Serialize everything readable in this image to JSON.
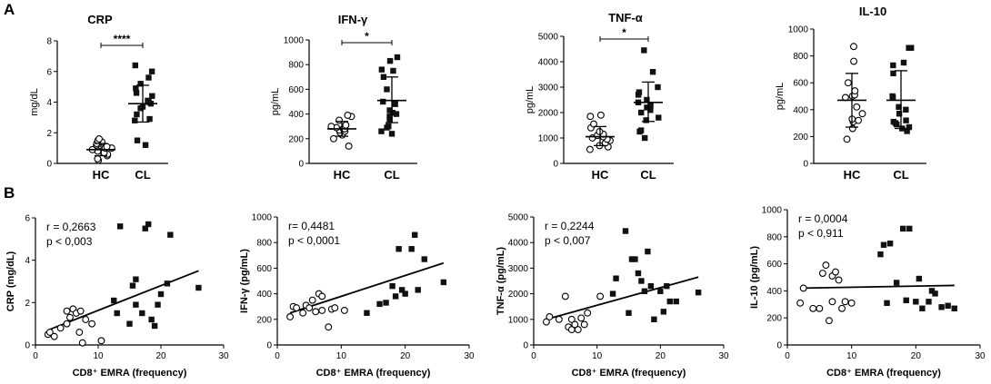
{
  "figure": {
    "panel_a_letter": "A",
    "panel_b_letter": "B"
  },
  "chart_data": [
    {
      "id": "a1",
      "type": "scatter",
      "subtype": "dot-plot",
      "title": "CRP",
      "ylabel": "mg/dL",
      "ylim": [
        0,
        8
      ],
      "yticks": [
        0,
        2,
        4,
        6,
        8
      ],
      "categories": [
        "HC",
        "CL"
      ],
      "groups": [
        {
          "name": "HC",
          "marker": "open-circle",
          "values": [
            0.2,
            0.3,
            0.5,
            0.6,
            0.7,
            0.8,
            0.9,
            1.0,
            1.0,
            1.1,
            1.2,
            1.3,
            1.4,
            1.5,
            1.6
          ],
          "mean": 0.9,
          "sd_low": 0.5,
          "sd_high": 1.3
        },
        {
          "name": "CL",
          "marker": "filled-square",
          "values": [
            1.2,
            1.5,
            2.8,
            2.9,
            3.2,
            3.6,
            3.7,
            3.9,
            4.0,
            4.1,
            4.4,
            4.6,
            4.9,
            5.2,
            5.6,
            6.0,
            6.4
          ],
          "mean": 3.9,
          "sd_low": 2.7,
          "sd_high": 5.1
        }
      ],
      "significance": "****"
    },
    {
      "id": "a2",
      "type": "scatter",
      "subtype": "dot-plot",
      "title": "IFN-γ",
      "ylabel": "pg/mL",
      "ylim": [
        0,
        1000
      ],
      "yticks": [
        0,
        200,
        400,
        600,
        800,
        1000
      ],
      "categories": [
        "HC",
        "CL"
      ],
      "groups": [
        {
          "name": "HC",
          "marker": "open-circle",
          "values": [
            140,
            200,
            230,
            250,
            260,
            270,
            280,
            280,
            290,
            300,
            310,
            350,
            380,
            390
          ],
          "mean": 280,
          "sd_low": 220,
          "sd_high": 340
        },
        {
          "name": "CL",
          "marker": "filled-square",
          "values": [
            240,
            260,
            290,
            300,
            350,
            380,
            400,
            410,
            430,
            480,
            500,
            600,
            700,
            750,
            760,
            830,
            860
          ],
          "mean": 510,
          "sd_low": 330,
          "sd_high": 700
        },
        {
          "name": "",
          "marker": "",
          "values": []
        }
      ],
      "significance": "*"
    },
    {
      "id": "a3",
      "type": "scatter",
      "subtype": "dot-plot",
      "title": "TNF-α",
      "ylabel": "pg/mL",
      "ylim": [
        0,
        5000
      ],
      "yticks": [
        0,
        1000,
        2000,
        3000,
        4000,
        5000
      ],
      "categories": [
        "HC",
        "CL"
      ],
      "groups": [
        {
          "name": "HC",
          "marker": "open-circle",
          "values": [
            550,
            650,
            700,
            800,
            900,
            950,
            1000,
            1050,
            1100,
            1150,
            1250,
            1400,
            1550,
            1850,
            1900
          ],
          "mean": 1050,
          "sd_low": 700,
          "sd_high": 1450
        },
        {
          "name": "CL",
          "marker": "filled-square",
          "values": [
            1000,
            1250,
            1300,
            1700,
            1800,
            2000,
            2100,
            2200,
            2300,
            2400,
            2500,
            2700,
            2800,
            3000,
            3600,
            4450
          ],
          "mean": 2400,
          "sd_low": 1650,
          "sd_high": 3200
        }
      ],
      "significance": "*"
    },
    {
      "id": "a4",
      "type": "scatter",
      "subtype": "dot-plot",
      "title": "IL-10",
      "ylabel": "pg/mL",
      "ylim": [
        0,
        1000
      ],
      "yticks": [
        0,
        200,
        400,
        600,
        800,
        1000
      ],
      "categories": [
        "HC",
        "CL"
      ],
      "groups": [
        {
          "name": "HC",
          "marker": "open-circle",
          "values": [
            180,
            260,
            310,
            320,
            330,
            370,
            420,
            490,
            500,
            510,
            540,
            600,
            760,
            870
          ],
          "mean": 470,
          "sd_low": 270,
          "sd_high": 670
        },
        {
          "name": "CL",
          "marker": "filled-square",
          "values": [
            240,
            260,
            270,
            290,
            300,
            310,
            320,
            370,
            400,
            420,
            490,
            500,
            670,
            730,
            750,
            860,
            860
          ],
          "mean": 470,
          "sd_low": 260,
          "sd_high": 690
        }
      ],
      "significance": ""
    },
    {
      "id": "b1",
      "type": "scatter",
      "xlabel": "CD8⁺ EMRA (frequency)",
      "ylabel": "CRP (mg/dL)",
      "xlim": [
        0,
        30
      ],
      "ylim": [
        0,
        6
      ],
      "xticks": [
        0,
        10,
        20,
        30
      ],
      "yticks": [
        0,
        2,
        4,
        6
      ],
      "stat_r": "r = 0,2663",
      "stat_p": "p < 0,003",
      "fit": [
        [
          2,
          0.7
        ],
        [
          26,
          3.5
        ]
      ],
      "open_points": [
        [
          2,
          0.5
        ],
        [
          2.3,
          0.6
        ],
        [
          3,
          0.4
        ],
        [
          4,
          0.8
        ],
        [
          5,
          1.0
        ],
        [
          5,
          1.6
        ],
        [
          5.5,
          1.3
        ],
        [
          6,
          1.7
        ],
        [
          6.5,
          1.5
        ],
        [
          7,
          0.6
        ],
        [
          7.2,
          1.6
        ],
        [
          7.5,
          0.1
        ],
        [
          8,
          1.2
        ],
        [
          9,
          1.0
        ],
        [
          10.5,
          0.2
        ]
      ],
      "filled_points": [
        [
          12.5,
          2.1
        ],
        [
          13,
          1.5
        ],
        [
          13.5,
          5.6
        ],
        [
          15,
          1.0
        ],
        [
          15.5,
          2.8
        ],
        [
          16,
          3.1
        ],
        [
          16,
          1.9
        ],
        [
          17,
          1.5
        ],
        [
          17.5,
          5.5
        ],
        [
          18,
          5.7
        ],
        [
          18.5,
          1.2
        ],
        [
          19,
          0.9
        ],
        [
          19.5,
          1.9
        ],
        [
          20,
          2.4
        ],
        [
          21,
          2.9
        ],
        [
          21.5,
          5.2
        ],
        [
          26,
          2.7
        ]
      ]
    },
    {
      "id": "b2",
      "type": "scatter",
      "xlabel": "CD8⁺ EMRA (frequency)",
      "ylabel": "IFN-γ (pg/mL)",
      "xlim": [
        0,
        30
      ],
      "ylim": [
        0,
        1000
      ],
      "xticks": [
        0,
        10,
        20,
        30
      ],
      "yticks": [
        0,
        200,
        400,
        600,
        800,
        1000
      ],
      "stat_r": "r= 0,4481",
      "stat_p": "p < 0,0001",
      "fit": [
        [
          2,
          250
        ],
        [
          26,
          640
        ]
      ],
      "open_points": [
        [
          2,
          220
        ],
        [
          2.5,
          300
        ],
        [
          3,
          290
        ],
        [
          4,
          250
        ],
        [
          4.5,
          310
        ],
        [
          5,
          290
        ],
        [
          5.5,
          350
        ],
        [
          6,
          260
        ],
        [
          6.5,
          400
        ],
        [
          7,
          380
        ],
        [
          7,
          270
        ],
        [
          8,
          140
        ],
        [
          8.5,
          280
        ],
        [
          9,
          290
        ],
        [
          10.5,
          270
        ]
      ],
      "filled_points": [
        [
          14,
          250
        ],
        [
          16,
          320
        ],
        [
          17,
          330
        ],
        [
          18,
          460
        ],
        [
          18.5,
          380
        ],
        [
          19,
          750
        ],
        [
          19.5,
          430
        ],
        [
          20,
          400
        ],
        [
          21,
          750
        ],
        [
          21.5,
          860
        ],
        [
          22,
          430
        ],
        [
          23,
          670
        ],
        [
          26,
          490
        ]
      ]
    },
    {
      "id": "b3",
      "type": "scatter",
      "xlabel": "CD8⁺ EMRA (frequency)",
      "ylabel": "TNF-α (pg/mL)",
      "xlim": [
        0,
        30
      ],
      "ylim": [
        0,
        5000
      ],
      "xticks": [
        0,
        10,
        20,
        30
      ],
      "yticks": [
        0,
        1000,
        2000,
        3000,
        4000,
        5000
      ],
      "stat_r": "r = 0,2244",
      "stat_p": "p < 0,007",
      "fit": [
        [
          2,
          1000
        ],
        [
          26,
          2650
        ]
      ],
      "open_points": [
        [
          2,
          900
        ],
        [
          2.5,
          1100
        ],
        [
          4,
          1000
        ],
        [
          5,
          1900
        ],
        [
          5.5,
          700
        ],
        [
          6,
          600
        ],
        [
          6,
          1000
        ],
        [
          6.5,
          800
        ],
        [
          7,
          600
        ],
        [
          7.5,
          1050
        ],
        [
          8,
          800
        ],
        [
          8.5,
          1250
        ],
        [
          10.5,
          1900
        ]
      ],
      "filled_points": [
        [
          12.5,
          2000
        ],
        [
          13,
          2600
        ],
        [
          14.5,
          4450
        ],
        [
          15,
          1250
        ],
        [
          15.5,
          3350
        ],
        [
          16,
          3350
        ],
        [
          16.5,
          2800
        ],
        [
          17,
          2500
        ],
        [
          17.5,
          2100
        ],
        [
          18,
          3650
        ],
        [
          18.5,
          2300
        ],
        [
          19,
          1000
        ],
        [
          20,
          2100
        ],
        [
          20.5,
          1300
        ],
        [
          21,
          2300
        ],
        [
          21.5,
          1700
        ],
        [
          22.5,
          1700
        ],
        [
          26,
          2050
        ]
      ]
    },
    {
      "id": "b4",
      "type": "scatter",
      "xlabel": "CD8⁺ EMRA (frequency)",
      "ylabel": "IL-10 (pg/mL)",
      "xlim": [
        0,
        30
      ],
      "ylim": [
        0,
        1000
      ],
      "xticks": [
        0,
        10,
        20,
        30
      ],
      "yticks": [
        0,
        200,
        400,
        600,
        800,
        1000
      ],
      "stat_r": "r = 0,0004",
      "stat_p": "p < 0,911",
      "fit": [
        [
          2,
          420
        ],
        [
          26,
          440
        ]
      ],
      "open_points": [
        [
          2,
          310
        ],
        [
          2.5,
          420
        ],
        [
          4,
          270
        ],
        [
          5,
          270
        ],
        [
          5.5,
          530
        ],
        [
          6,
          590
        ],
        [
          6.5,
          180
        ],
        [
          7,
          510
        ],
        [
          7,
          320
        ],
        [
          7.5,
          540
        ],
        [
          8,
          480
        ],
        [
          8.5,
          270
        ],
        [
          9,
          320
        ],
        [
          10,
          310
        ]
      ],
      "filled_points": [
        [
          14.5,
          670
        ],
        [
          15,
          740
        ],
        [
          15.5,
          310
        ],
        [
          16,
          750
        ],
        [
          17,
          460
        ],
        [
          18,
          860
        ],
        [
          18.5,
          330
        ],
        [
          19,
          860
        ],
        [
          20,
          320
        ],
        [
          20.5,
          490
        ],
        [
          21,
          270
        ],
        [
          22,
          320
        ],
        [
          22.5,
          400
        ],
        [
          23,
          380
        ],
        [
          24,
          280
        ],
        [
          25,
          290
        ],
        [
          26,
          270
        ]
      ]
    }
  ]
}
